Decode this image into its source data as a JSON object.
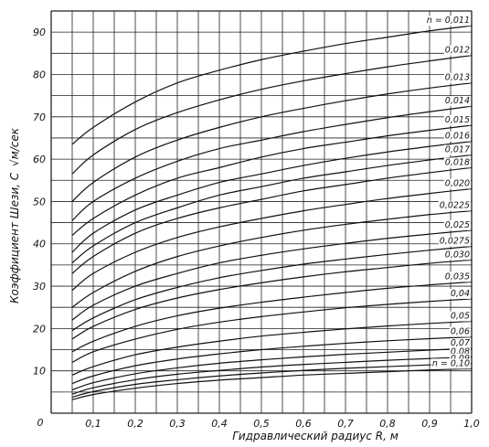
{
  "chart_data": {
    "type": "line",
    "title": "",
    "xlabel": "Гидравлический радиус R, м",
    "ylabel": "Коэффициент Шези, C",
    "yunit": "√м/сек",
    "origin_label": "0",
    "xlim": [
      0.0,
      1.0
    ],
    "ylim": [
      0,
      95
    ],
    "x_grid_step": 0.05,
    "y_grid_step": 5,
    "xticks": [
      "0,1",
      "0,2",
      "0,3",
      "0,4",
      "0,5",
      "0,6",
      "0,7",
      "0,8",
      "0,9",
      "1,0"
    ],
    "xtick_values": [
      0.1,
      0.2,
      0.3,
      0.4,
      0.5,
      0.6,
      0.7,
      0.8,
      0.9,
      1.0
    ],
    "yticks": [
      "10",
      "20",
      "30",
      "40",
      "50",
      "60",
      "70",
      "80",
      "90"
    ],
    "ytick_values": [
      10,
      20,
      30,
      40,
      50,
      60,
      70,
      80,
      90
    ],
    "x": [
      0.05,
      0.1,
      0.2,
      0.3,
      0.4,
      0.5,
      0.6,
      0.7,
      0.8,
      0.9,
      1.0
    ],
    "grid": true,
    "series": [
      {
        "name": "n = 0,011",
        "values": [
          63.5,
          67.5,
          73.5,
          78.0,
          81.0,
          83.5,
          85.5,
          87.3,
          88.8,
          90.3,
          91.5
        ]
      },
      {
        "name": "0,012",
        "values": [
          56.5,
          61.0,
          67.0,
          71.0,
          74.0,
          76.5,
          78.5,
          80.2,
          81.8,
          83.2,
          84.5
        ]
      },
      {
        "name": "0,013",
        "values": [
          50.0,
          54.5,
          60.5,
          64.5,
          67.5,
          70.0,
          72.0,
          73.8,
          75.4,
          76.8,
          78.0
        ]
      },
      {
        "name": "0,014",
        "values": [
          45.5,
          50.0,
          55.5,
          59.5,
          62.5,
          64.5,
          66.5,
          68.2,
          69.8,
          71.2,
          72.5
        ]
      },
      {
        "name": "0,015",
        "values": [
          42.0,
          46.0,
          51.5,
          55.5,
          58.0,
          60.5,
          62.5,
          64.0,
          65.5,
          66.8,
          68.0
        ]
      },
      {
        "name": "0,016",
        "values": [
          38.0,
          42.5,
          48.0,
          51.5,
          54.5,
          56.5,
          58.5,
          60.2,
          61.7,
          63.0,
          64.2
        ]
      },
      {
        "name": "0,017",
        "values": [
          35.5,
          39.5,
          45.0,
          48.5,
          51.5,
          53.5,
          55.5,
          57.0,
          58.5,
          59.8,
          61.0
        ]
      },
      {
        "name": "0,018",
        "values": [
          33.0,
          37.0,
          42.5,
          46.0,
          48.5,
          50.5,
          52.5,
          54.0,
          55.5,
          56.8,
          58.0
        ]
      },
      {
        "name": "0,020",
        "values": [
          29.0,
          33.0,
          38.0,
          41.5,
          44.0,
          46.0,
          47.8,
          49.3,
          50.7,
          51.9,
          53.0
        ]
      },
      {
        "name": "0,0225",
        "values": [
          25.0,
          28.5,
          33.5,
          37.0,
          39.5,
          41.5,
          43.2,
          44.6,
          45.8,
          46.9,
          47.8
        ]
      },
      {
        "name": "0,025",
        "values": [
          22.0,
          25.5,
          30.0,
          33.0,
          35.5,
          37.3,
          38.8,
          40.1,
          41.3,
          42.3,
          43.2
        ]
      },
      {
        "name": "0,0275",
        "values": [
          19.5,
          22.5,
          26.8,
          29.7,
          32.0,
          33.7,
          35.2,
          36.4,
          37.5,
          38.5,
          39.4
        ]
      },
      {
        "name": "0,030",
        "values": [
          17.5,
          20.5,
          24.5,
          27.2,
          29.2,
          30.8,
          32.2,
          33.4,
          34.4,
          35.4,
          36.2
        ]
      },
      {
        "name": "0,035",
        "values": [
          14.5,
          17.0,
          20.5,
          23.0,
          24.8,
          26.2,
          27.4,
          28.5,
          29.5,
          30.3,
          31.0
        ]
      },
      {
        "name": "0,04",
        "values": [
          12.0,
          14.5,
          17.5,
          19.8,
          21.5,
          22.8,
          23.9,
          24.9,
          25.7,
          26.4,
          27.0
        ]
      },
      {
        "name": "0,05",
        "values": [
          9.0,
          11.0,
          13.8,
          15.6,
          17.0,
          18.2,
          19.1,
          19.9,
          20.6,
          21.2,
          21.7
        ]
      },
      {
        "name": "0,06",
        "values": [
          7.0,
          8.8,
          11.2,
          12.8,
          14.0,
          15.0,
          15.8,
          16.5,
          17.1,
          17.6,
          18.0
        ]
      },
      {
        "name": "0,07",
        "values": [
          5.5,
          7.2,
          9.3,
          10.7,
          11.8,
          12.6,
          13.3,
          13.9,
          14.4,
          14.9,
          15.3
        ]
      },
      {
        "name": "0,08",
        "values": [
          4.5,
          6.0,
          7.9,
          9.2,
          10.1,
          10.9,
          11.5,
          12.0,
          12.5,
          12.9,
          13.3
        ]
      },
      {
        "name": "0,09",
        "values": [
          3.8,
          5.1,
          6.8,
          7.9,
          8.8,
          9.5,
          10.1,
          10.6,
          11.0,
          11.4,
          11.7
        ]
      },
      {
        "name": "n = 0,10",
        "values": [
          3.2,
          4.4,
          5.9,
          7.0,
          7.8,
          8.4,
          9.0,
          9.4,
          9.8,
          10.2,
          10.5
        ]
      }
    ]
  }
}
